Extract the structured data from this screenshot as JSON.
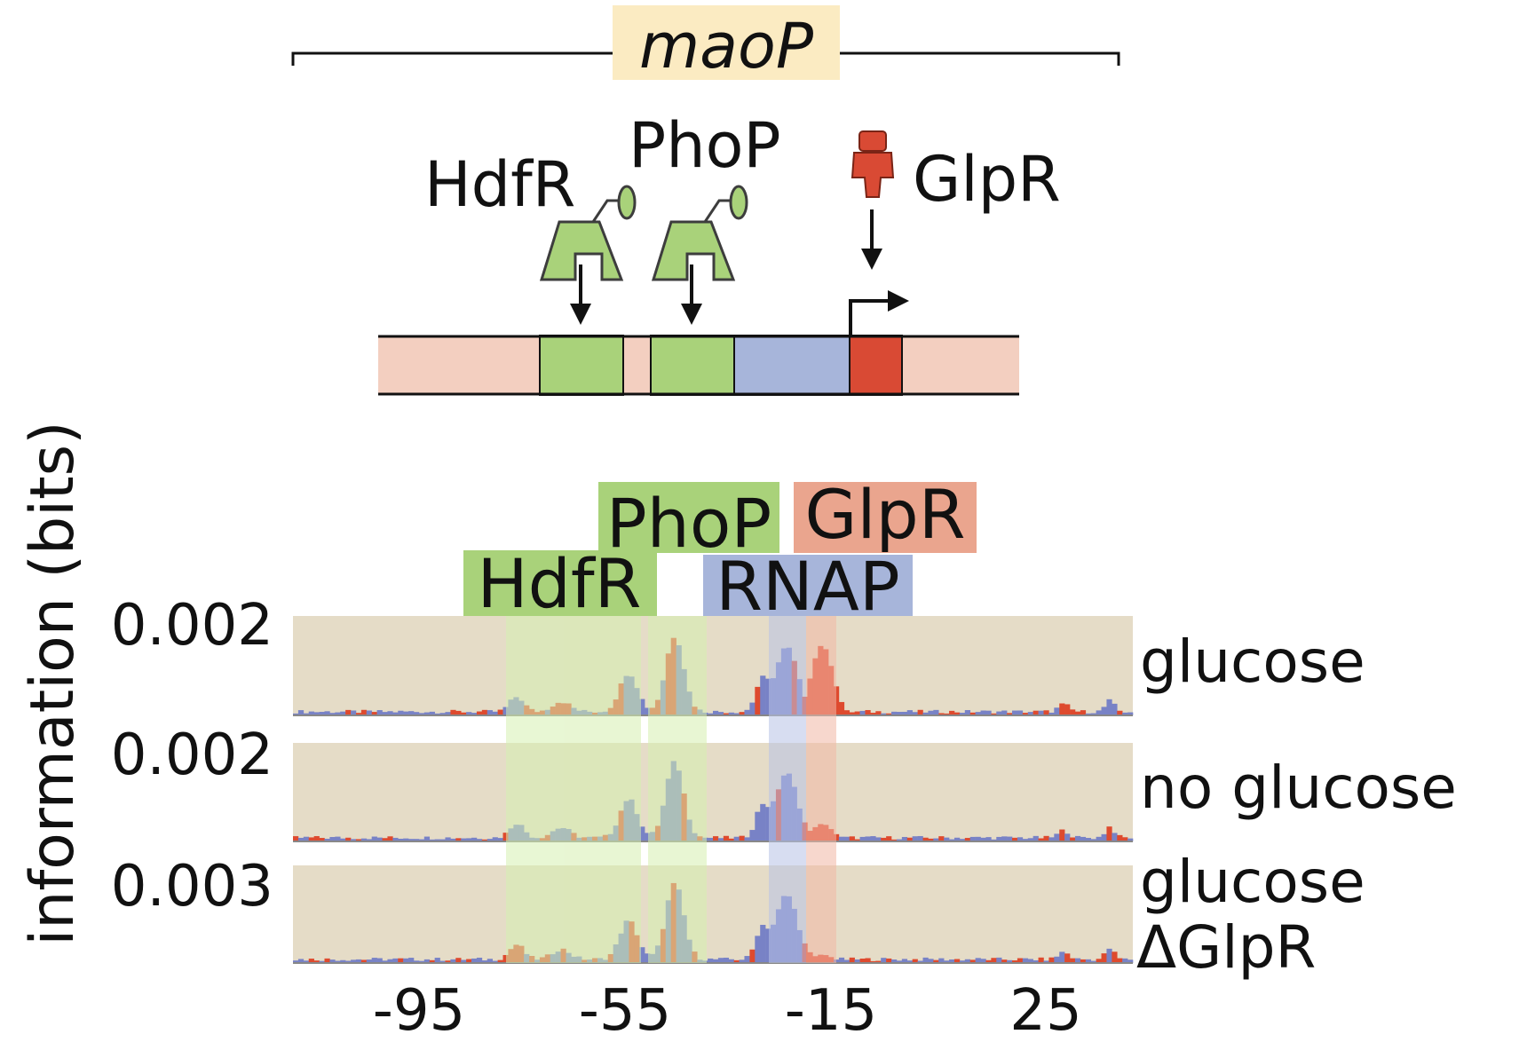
{
  "promoter": {
    "name": "maoP"
  },
  "factors": [
    {
      "name": "HdfR",
      "role": "activator",
      "color": "#a9d27a"
    },
    {
      "name": "PhoP",
      "role": "activator",
      "color": "#a9d27a"
    },
    {
      "name": "GlpR",
      "role": "repressor",
      "color": "#d94a34"
    }
  ],
  "site_labels": {
    "phop": "PhoP",
    "glpr": "GlpR",
    "hdfr": "HdfR",
    "rnap": "RNAP"
  },
  "colors": {
    "activator_site": "#a9d27a",
    "rnap_site": "#a7b5da",
    "repressor_site": "#d94a34",
    "dna_background": "#f3cfc0",
    "panel_bg": "#e5dcc7",
    "bar_blue": "#7882c6",
    "bar_red": "#de4a2e",
    "label_hdfr_phop": "#a9d27a",
    "label_glpr": "#eaa58e",
    "label_rnap": "#a7b5da",
    "maop_highlight": "#fbebc2"
  },
  "chart_data": {
    "type": "bar",
    "ylabel": "information (bits)",
    "xlabel": "",
    "x_ticks": [
      -95,
      -55,
      -15,
      25
    ],
    "xlim": [
      -115,
      35
    ],
    "tracks": [
      {
        "condition": "glucose",
        "ymax_label": "0.002"
      },
      {
        "condition": "no glucose",
        "ymax_label": "0.002"
      },
      {
        "condition": [
          "glucose",
          "ΔGlpR"
        ],
        "ymax_label": "0.003"
      }
    ]
  }
}
